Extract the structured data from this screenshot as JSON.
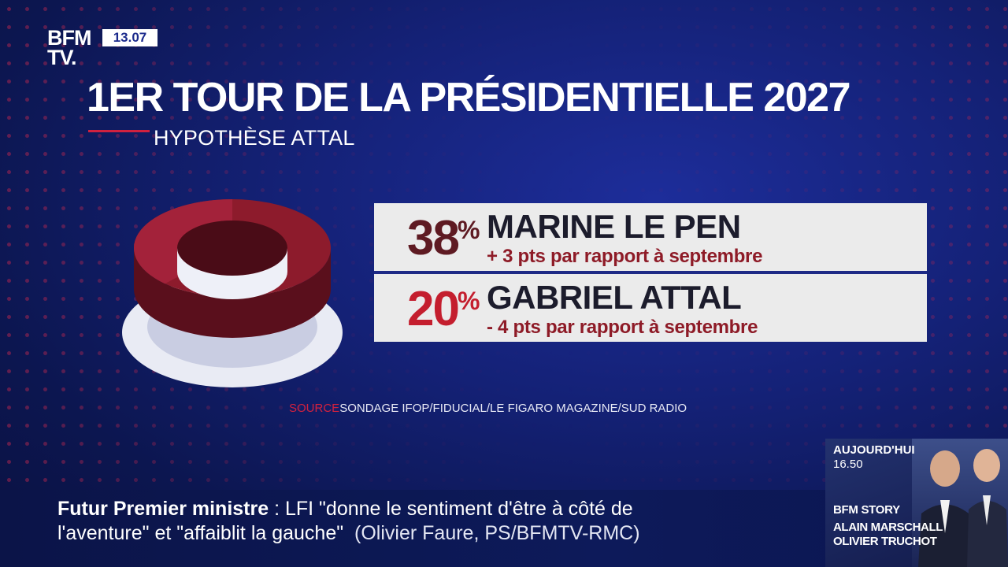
{
  "channel": {
    "logo_line1": "BFM",
    "logo_line2": "TV.",
    "time": "13.07"
  },
  "chart_data": {
    "type": "pie",
    "title": "1ER TOUR DE LA PRÉSIDENTIELLE 2027",
    "subtitle": "HYPOTHÈSE ATTAL",
    "categories": [
      "MARINE LE PEN",
      "GABRIEL ATTAL"
    ],
    "values": [
      38,
      20
    ],
    "unit": "%",
    "highlight_value": 38,
    "rows": [
      {
        "value": 38,
        "pct_color": "#5e1a22",
        "name": "MARINE LE PEN",
        "change": "+ 3 pts par rapport à septembre"
      },
      {
        "value": 20,
        "pct_color": "#c41e2e",
        "name": "GABRIEL ATTAL",
        "change": "- 4 pts par rapport à septembre"
      }
    ],
    "source_label": "SOURCE",
    "source_text": "SONDAGE IFOP/FIDUCIAL/LE FIGARO MAGAZINE/SUD RADIO"
  },
  "colors": {
    "accent_red": "#d0213f",
    "dark_red": "#5e1a22",
    "text_red": "#8e1b27",
    "panel_bg": "#ebebeb",
    "background": "#142176"
  },
  "ticker": {
    "lead": "Futur Premier ministre",
    "sep": " : ",
    "line1_text": "LFI \"donne le sentiment d'être à côté de",
    "line2_text": "l'aventure\" et \"affaiblit la gauche\"",
    "citation": "(Olivier Faure, PS/BFMTV-RMC)"
  },
  "promo": {
    "when": "AUJOURD'HUI",
    "time": "16.50",
    "show": "BFM STORY",
    "host1": "ALAIN MARSCHALL",
    "host2": "OLIVIER TRUCHOT"
  }
}
